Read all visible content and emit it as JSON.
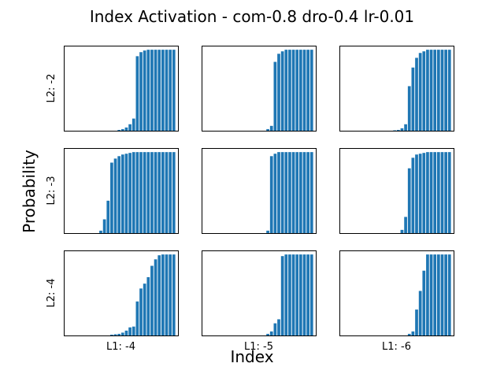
{
  "figure": {
    "title": "Index Activation - com-0.8 dro-0.4 lr-0.01",
    "xlabel": "Index",
    "ylabel": "Probability"
  },
  "chart_data": {
    "type": "bar",
    "bar_color": "#1f77b4",
    "grid": false,
    "n_bars": 30,
    "ylim": [
      0,
      1.05
    ],
    "row_labels": [
      "L2: -2",
      "L2: -3",
      "L2: -4"
    ],
    "col_labels": [
      "L1: -4",
      "L1: -5",
      "L1: -6"
    ],
    "panels": [
      {
        "row": 0,
        "col": 0,
        "values": [
          0,
          0,
          0,
          0,
          0,
          0,
          0,
          0,
          0,
          0,
          0,
          0,
          0,
          0,
          0.01,
          0.02,
          0.04,
          0.08,
          0.15,
          0.92,
          0.97,
          0.99,
          1,
          1,
          1,
          1,
          1,
          1,
          1,
          1
        ]
      },
      {
        "row": 0,
        "col": 1,
        "values": [
          0,
          0,
          0,
          0,
          0,
          0,
          0,
          0,
          0,
          0,
          0,
          0,
          0,
          0,
          0,
          0,
          0,
          0.02,
          0.06,
          0.85,
          0.95,
          0.98,
          1,
          1,
          1,
          1,
          1,
          1,
          1,
          1
        ]
      },
      {
        "row": 0,
        "col": 2,
        "values": [
          0,
          0,
          0,
          0,
          0,
          0,
          0,
          0,
          0,
          0,
          0,
          0,
          0,
          0,
          0.005,
          0.01,
          0.03,
          0.08,
          0.55,
          0.78,
          0.9,
          0.96,
          0.98,
          1,
          1,
          1,
          1,
          1,
          1,
          1
        ]
      },
      {
        "row": 1,
        "col": 0,
        "values": [
          0,
          0,
          0,
          0,
          0,
          0,
          0,
          0,
          0,
          0.03,
          0.17,
          0.4,
          0.87,
          0.92,
          0.95,
          0.97,
          0.98,
          0.99,
          1,
          1,
          1,
          1,
          1,
          1,
          1,
          1,
          1,
          1,
          1,
          1
        ]
      },
      {
        "row": 1,
        "col": 1,
        "values": [
          0,
          0,
          0,
          0,
          0,
          0,
          0,
          0,
          0,
          0,
          0,
          0,
          0,
          0,
          0,
          0,
          0,
          0.03,
          0.95,
          0.98,
          1,
          1,
          1,
          1,
          1,
          1,
          1,
          1,
          1,
          1
        ]
      },
      {
        "row": 1,
        "col": 2,
        "values": [
          0,
          0,
          0,
          0,
          0,
          0,
          0,
          0,
          0,
          0,
          0,
          0,
          0,
          0,
          0,
          0,
          0.04,
          0.2,
          0.8,
          0.93,
          0.97,
          0.98,
          0.99,
          1,
          1,
          1,
          1,
          1,
          1,
          1
        ]
      },
      {
        "row": 2,
        "col": 0,
        "values": [
          0,
          0,
          0,
          0,
          0,
          0,
          0,
          0,
          0,
          0,
          0,
          0,
          0.01,
          0.015,
          0.02,
          0.035,
          0.06,
          0.1,
          0.11,
          0.42,
          0.58,
          0.64,
          0.72,
          0.86,
          0.94,
          0.99,
          1,
          1,
          1,
          1
        ]
      },
      {
        "row": 2,
        "col": 1,
        "values": [
          0,
          0,
          0,
          0,
          0,
          0,
          0,
          0,
          0,
          0,
          0,
          0,
          0,
          0,
          0,
          0,
          0,
          0.02,
          0.05,
          0.15,
          0.2,
          0.98,
          1,
          1,
          1,
          1,
          1,
          1,
          1,
          1
        ]
      },
      {
        "row": 2,
        "col": 2,
        "values": [
          0,
          0,
          0,
          0,
          0,
          0,
          0,
          0,
          0,
          0,
          0,
          0,
          0,
          0,
          0,
          0,
          0,
          0,
          0.02,
          0.05,
          0.32,
          0.55,
          0.8,
          1,
          1,
          1,
          1,
          1,
          1,
          1
        ]
      }
    ]
  }
}
